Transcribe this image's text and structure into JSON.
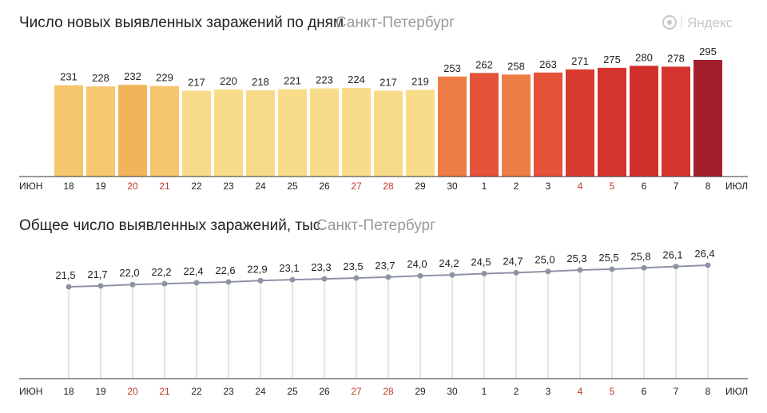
{
  "logo": {
    "text": "Яндекс",
    "icon": "yandex-logo-icon"
  },
  "colors": {
    "weekend_tick": "#c0392b",
    "weekday_tick": "#222222",
    "line": "#8e93a6",
    "dot": "#8e93a6",
    "guide": "#c9c9c9",
    "axis": "#333333"
  },
  "chart_data": [
    {
      "type": "bar",
      "title": "Число новых выявленных заражений по дням",
      "subtitle": "Санкт-Петербург",
      "month_start": "ИЮН",
      "month_end": "ИЮЛ",
      "categories": [
        "18",
        "19",
        "20",
        "21",
        "22",
        "23",
        "24",
        "25",
        "26",
        "27",
        "28",
        "29",
        "30",
        "1",
        "2",
        "3",
        "4",
        "5",
        "6",
        "7",
        "8"
      ],
      "weekend": [
        false,
        false,
        true,
        true,
        false,
        false,
        false,
        false,
        false,
        true,
        true,
        false,
        false,
        false,
        false,
        false,
        true,
        true,
        false,
        false,
        false
      ],
      "values": [
        231,
        228,
        232,
        229,
        217,
        220,
        218,
        221,
        223,
        224,
        217,
        219,
        253,
        262,
        258,
        263,
        271,
        275,
        280,
        278,
        295
      ],
      "value_labels": [
        "231",
        "228",
        "232",
        "229",
        "217",
        "220",
        "218",
        "221",
        "223",
        "224",
        "217",
        "219",
        "253",
        "262",
        "258",
        "263",
        "271",
        "275",
        "280",
        "278",
        "295"
      ],
      "bar_colors": [
        "#f6c66e",
        "#f6c870",
        "#f2b45a",
        "#f6c66e",
        "#f8db88",
        "#f8dc8a",
        "#f8db88",
        "#f8dc8a",
        "#f8dc8a",
        "#f8dc8a",
        "#f8db88",
        "#f8dc8a",
        "#ee7d45",
        "#e4523a",
        "#ee7d45",
        "#e4523a",
        "#d93a30",
        "#d4342c",
        "#d12f2b",
        "#d4342c",
        "#a31f2d"
      ],
      "ylim": [
        0,
        300
      ]
    },
    {
      "type": "line",
      "title": "Общее число выявленных заражений, тыс.",
      "subtitle": "Санкт-Петербург",
      "month_start": "ИЮН",
      "month_end": "ИЮЛ",
      "categories": [
        "18",
        "19",
        "20",
        "21",
        "22",
        "23",
        "24",
        "25",
        "26",
        "27",
        "28",
        "29",
        "30",
        "1",
        "2",
        "3",
        "4",
        "5",
        "6",
        "7",
        "8"
      ],
      "weekend": [
        false,
        false,
        true,
        true,
        false,
        false,
        false,
        false,
        false,
        true,
        true,
        false,
        false,
        false,
        false,
        false,
        true,
        true,
        false,
        false,
        false
      ],
      "values": [
        21.5,
        21.7,
        22.0,
        22.2,
        22.4,
        22.6,
        22.9,
        23.1,
        23.3,
        23.5,
        23.7,
        24.0,
        24.2,
        24.5,
        24.7,
        25.0,
        25.3,
        25.5,
        25.8,
        26.1,
        26.4
      ],
      "value_labels": [
        "21,5",
        "21,7",
        "22,0",
        "22,2",
        "22,4",
        "22,6",
        "22,9",
        "23,1",
        "23,3",
        "23,5",
        "23,7",
        "24,0",
        "24,2",
        "24,5",
        "24,7",
        "25,0",
        "25,3",
        "25,5",
        "25,8",
        "26,1",
        "26,4"
      ]
    }
  ]
}
